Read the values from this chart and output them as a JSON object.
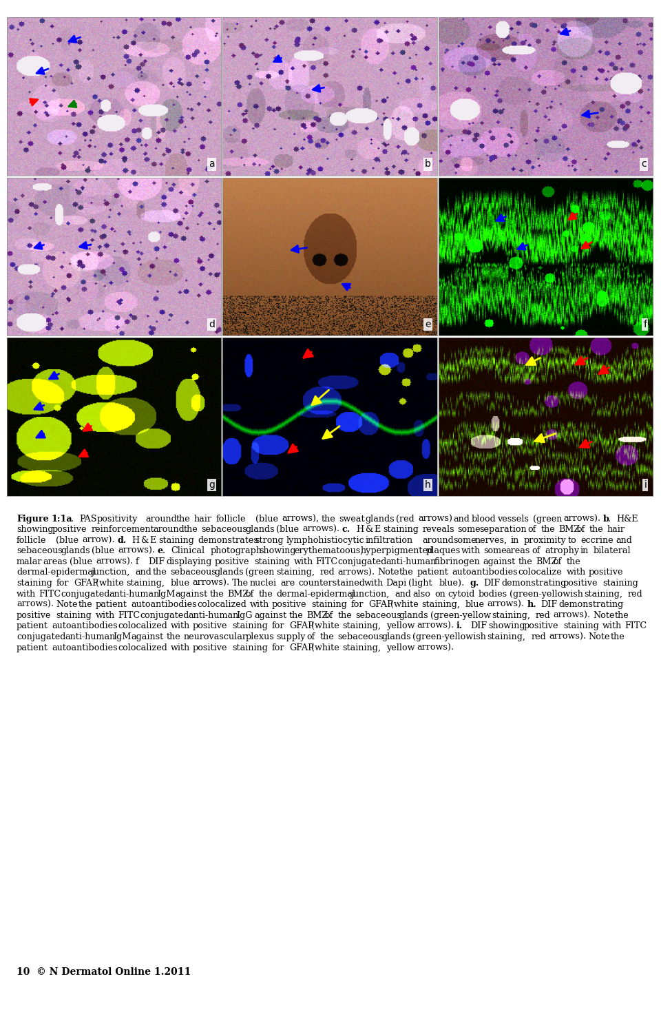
{
  "figure_width": 9.6,
  "figure_height": 14.69,
  "dpi": 100,
  "bg_color": "#ffffff",
  "labels": [
    "a",
    "b",
    "c",
    "d",
    "e",
    "f",
    "g",
    "h",
    "i"
  ],
  "caption_fontsize": 9.2,
  "footer_fontsize": 10,
  "label_fontsize": 10,
  "caption_segments": [
    [
      "bold",
      "Figure 1:1a"
    ],
    [
      "normal",
      ". PAS positivity around the hair follicle (blue arrows), the sweat glands (red arrows) and blood vessels (green arrows). "
    ],
    [
      "bold",
      "b"
    ],
    [
      "normal",
      ". H&E showing positive reinforcement around the sebaceous glands (blue arrows). "
    ],
    [
      "bold",
      "c."
    ],
    [
      "normal",
      " H & E staining reveals some separation of the BMZ of the hair follicle (blue arrow). "
    ],
    [
      "bold",
      "d."
    ],
    [
      "normal",
      " H & E staining demonstrates strong lymphohistiocytic infiltration around some nerves, in proximity to eccrine and sebaceous glands (blue arrows). "
    ],
    [
      "bold",
      "e"
    ],
    [
      "normal",
      ". Clinical photograph showing erythematoous, hyperpigmented plaques with some areas of atrophy in bilateral malar areas (blue arrows). f  DIF displaying positive staining with FITC conjugated anti-human fibrinogen against the BMZ of the dermal-epidermal junction, and the sebaceous glands (green staining, red arrows). Note the patient autoantibodies colocalize with positive staining for GFAP (white staining, blue arrows). The nuclei are counterstained with Dapi (light blue). "
    ],
    [
      "bold",
      "g."
    ],
    [
      "normal",
      " DIF demonstrating positive staining with FITC conjugated anti-human IgM against the BMZ of the dermal-epidermal junction, and also on cytoid bodies (green-yellowish staining, red arrows). Note the patient autoantibodies colocalized with positive staining for GFAP (white staining, blue arrows). "
    ],
    [
      "bold",
      "h."
    ],
    [
      "normal",
      " DIF demonstrating positive staining with FITC conjugated anti-human IgG against the BMZ of the sebaceous glands (green-yellow staining, red arrows). Note the patient autoantibodies colocalized with positive staining for GFAP (white staining, yellow arrows). "
    ],
    [
      "bold",
      "i."
    ],
    [
      "normal",
      " DIF showing positive staining with FITC conjugated anti-human IgM against the neurovascular plexus supply of the sebaceous glands (green-yellowish staining, red arrows). Note the patient autoantibodies colocalized with positive staining for GFAP (white staining, yellow arrows)."
    ]
  ],
  "footer_text": "10  © N Dermatol Online 1.2011"
}
